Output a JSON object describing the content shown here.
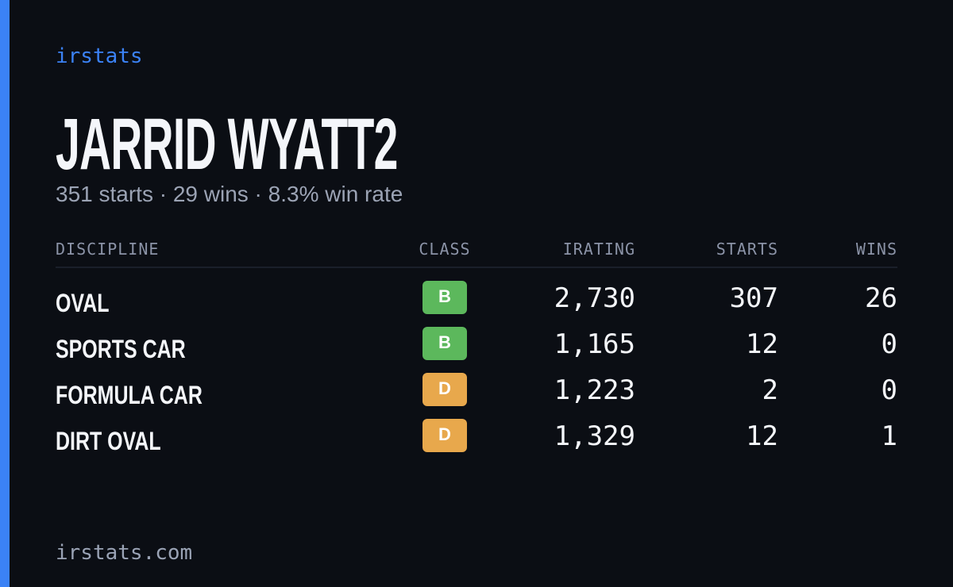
{
  "brand": "irstats",
  "header": {
    "title": "JARRID WYATT2",
    "subtitle": "351 starts · 29 wins · 8.3% win rate"
  },
  "table": {
    "columns": [
      "DISCIPLINE",
      "CLASS",
      "IRATING",
      "STARTS",
      "WINS"
    ],
    "rows": [
      [
        "OVAL",
        "B",
        "2,730",
        "307",
        "26"
      ],
      [
        "SPORTS CAR",
        "B",
        "1,165",
        "12",
        "0"
      ],
      [
        "FORMULA CAR",
        "D",
        "1,223",
        "2",
        "0"
      ],
      [
        "DIRT OVAL",
        "D",
        "1,329",
        "12",
        "1"
      ]
    ],
    "class_colors": {
      "B": "#5cb85c",
      "D": "#e8a84c"
    }
  },
  "footer": "irstats.com"
}
